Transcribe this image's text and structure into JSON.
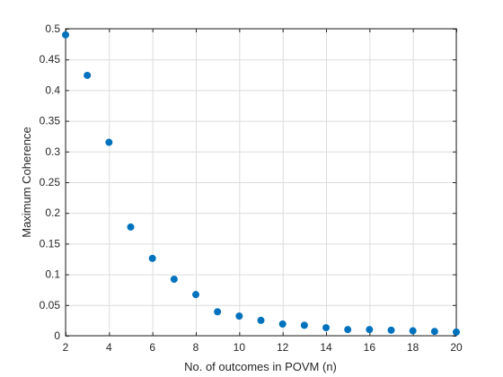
{
  "chart_data": {
    "type": "scatter",
    "title": "",
    "xlabel": "No. of outcomes in POVM (n)",
    "ylabel": "Maximum Coherence",
    "xlim": [
      2,
      20
    ],
    "ylim": [
      0,
      0.5
    ],
    "xticks": [
      2,
      4,
      6,
      8,
      10,
      12,
      14,
      16,
      18,
      20
    ],
    "yticks": [
      0,
      0.05,
      0.1,
      0.15,
      0.2,
      0.25,
      0.3,
      0.35,
      0.4,
      0.45,
      0.5
    ],
    "grid": true,
    "marker_color": "#0072BD",
    "series": [
      {
        "x": [
          2,
          3,
          4,
          5,
          6,
          7,
          8,
          9,
          10,
          11,
          12,
          13,
          14,
          15,
          16,
          17,
          18,
          19,
          20
        ],
        "y": [
          0.49,
          0.424,
          0.315,
          0.177,
          0.126,
          0.092,
          0.067,
          0.039,
          0.032,
          0.025,
          0.019,
          0.017,
          0.013,
          0.01,
          0.01,
          0.009,
          0.008,
          0.007,
          0.006
        ]
      }
    ]
  }
}
